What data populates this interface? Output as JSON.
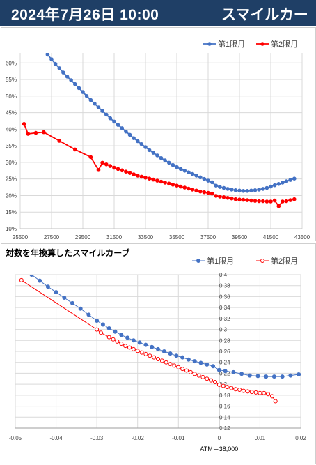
{
  "header": {
    "date_time": "2024年7月26日 10:00",
    "title": "スマイルカーブ",
    "background": "#1f3f66"
  },
  "chart_data": [
    {
      "type": "line",
      "title": "",
      "xlabel": "",
      "ylabel": "",
      "xlim": [
        25500,
        43500
      ],
      "ylim": [
        0.1,
        0.63
      ],
      "x_ticks": [
        25500,
        27500,
        29500,
        31500,
        33500,
        35500,
        37500,
        39500,
        41500,
        43500
      ],
      "x_tick_labels": [
        "25500",
        "27500",
        "29500",
        "31500",
        "33500",
        "35500",
        "37500",
        "39500",
        "41500",
        "43500"
      ],
      "y_ticks": [
        0.1,
        0.15,
        0.2,
        0.25,
        0.3,
        0.35,
        0.4,
        0.45,
        0.5,
        0.55,
        0.6
      ],
      "y_tick_labels": [
        "10%",
        "15%",
        "20%",
        "25%",
        "30%",
        "35%",
        "40%",
        "45%",
        "50%",
        "55%",
        "60%"
      ],
      "grid": true,
      "legend": "top-right",
      "series": [
        {
          "name": "第1限月",
          "color": "#4472c4",
          "points": [
            [
              27000,
              0.64
            ],
            [
              27250,
              0.625
            ],
            [
              27500,
              0.611
            ],
            [
              27750,
              0.597
            ],
            [
              28000,
              0.584
            ],
            [
              28250,
              0.571
            ],
            [
              28500,
              0.559
            ],
            [
              28750,
              0.548
            ],
            [
              29000,
              0.536
            ],
            [
              29250,
              0.524
            ],
            [
              29500,
              0.512
            ],
            [
              29750,
              0.5
            ],
            [
              30000,
              0.488
            ],
            [
              30250,
              0.477
            ],
            [
              30500,
              0.466
            ],
            [
              30750,
              0.455
            ],
            [
              31000,
              0.444
            ],
            [
              31250,
              0.433
            ],
            [
              31500,
              0.423
            ],
            [
              31750,
              0.413
            ],
            [
              32000,
              0.403
            ],
            [
              32250,
              0.393
            ],
            [
              32500,
              0.383
            ],
            [
              32750,
              0.373
            ],
            [
              33000,
              0.364
            ],
            [
              33250,
              0.355
            ],
            [
              33500,
              0.346
            ],
            [
              33750,
              0.337
            ],
            [
              34000,
              0.329
            ],
            [
              34250,
              0.321
            ],
            [
              34500,
              0.313
            ],
            [
              34750,
              0.306
            ],
            [
              35000,
              0.299
            ],
            [
              35250,
              0.292
            ],
            [
              35500,
              0.286
            ],
            [
              35750,
              0.28
            ],
            [
              36000,
              0.275
            ],
            [
              36250,
              0.27
            ],
            [
              36500,
              0.265
            ],
            [
              36750,
              0.26
            ],
            [
              37000,
              0.255
            ],
            [
              37250,
              0.25
            ],
            [
              37500,
              0.245
            ],
            [
              37750,
              0.24
            ],
            [
              38000,
              0.23
            ],
            [
              38250,
              0.226
            ],
            [
              38500,
              0.223
            ],
            [
              38750,
              0.22
            ],
            [
              39000,
              0.218
            ],
            [
              39250,
              0.216
            ],
            [
              39500,
              0.215
            ],
            [
              39750,
              0.214
            ],
            [
              40000,
              0.214
            ],
            [
              40250,
              0.215
            ],
            [
              40500,
              0.216
            ],
            [
              40750,
              0.218
            ],
            [
              41000,
              0.22
            ],
            [
              41250,
              0.223
            ],
            [
              41500,
              0.227
            ],
            [
              41750,
              0.231
            ],
            [
              42000,
              0.235
            ],
            [
              42250,
              0.239
            ],
            [
              42500,
              0.243
            ],
            [
              42750,
              0.247
            ],
            [
              43000,
              0.251
            ]
          ]
        },
        {
          "name": "第2限月",
          "color": "#ff0000",
          "points": [
            [
              25750,
              0.416
            ],
            [
              26000,
              0.386
            ],
            [
              26500,
              0.389
            ],
            [
              27000,
              0.391
            ],
            [
              28000,
              0.365
            ],
            [
              29000,
              0.339
            ],
            [
              30000,
              0.316
            ],
            [
              30500,
              0.277
            ],
            [
              30750,
              0.299
            ],
            [
              31000,
              0.294
            ],
            [
              31250,
              0.289
            ],
            [
              31500,
              0.284
            ],
            [
              31750,
              0.28
            ],
            [
              32000,
              0.276
            ],
            [
              32250,
              0.272
            ],
            [
              32500,
              0.268
            ],
            [
              32750,
              0.264
            ],
            [
              33000,
              0.26
            ],
            [
              33250,
              0.257
            ],
            [
              33500,
              0.254
            ],
            [
              33750,
              0.251
            ],
            [
              34000,
              0.248
            ],
            [
              34250,
              0.245
            ],
            [
              34500,
              0.242
            ],
            [
              34750,
              0.239
            ],
            [
              35000,
              0.236
            ],
            [
              35250,
              0.233
            ],
            [
              35500,
              0.23
            ],
            [
              35750,
              0.227
            ],
            [
              36000,
              0.224
            ],
            [
              36250,
              0.221
            ],
            [
              36500,
              0.218
            ],
            [
              36750,
              0.215
            ],
            [
              37000,
              0.212
            ],
            [
              37250,
              0.21
            ],
            [
              37500,
              0.208
            ],
            [
              37750,
              0.206
            ],
            [
              38000,
              0.199
            ],
            [
              38250,
              0.197
            ],
            [
              38500,
              0.195
            ],
            [
              38750,
              0.193
            ],
            [
              39000,
              0.191
            ],
            [
              39250,
              0.189
            ],
            [
              39500,
              0.188
            ],
            [
              39750,
              0.187
            ],
            [
              40000,
              0.186
            ],
            [
              40250,
              0.185
            ],
            [
              40500,
              0.184
            ],
            [
              40750,
              0.183
            ],
            [
              41000,
              0.183
            ],
            [
              41250,
              0.182
            ],
            [
              41500,
              0.182
            ],
            [
              41750,
              0.185
            ],
            [
              42000,
              0.168
            ],
            [
              42250,
              0.182
            ],
            [
              42500,
              0.183
            ],
            [
              42750,
              0.186
            ],
            [
              43000,
              0.189
            ]
          ]
        }
      ]
    },
    {
      "type": "line",
      "title": "対数を年換算したスマイルカーブ",
      "xlabel": "ATM＝38,000",
      "ylabel": "",
      "xlim": [
        -0.05,
        0.02
      ],
      "ylim": [
        0.12,
        0.4
      ],
      "x_ticks": [
        -0.05,
        -0.04,
        -0.03,
        -0.02,
        -0.01,
        0,
        0.01,
        0.02
      ],
      "x_tick_labels": [
        "-0.05",
        "-0.04",
        "-0.03",
        "-0.02",
        "-0.01",
        "0",
        "0.01",
        "0.02"
      ],
      "y_ticks": [
        0.12,
        0.14,
        0.16,
        0.18,
        0.2,
        0.22,
        0.24,
        0.26,
        0.28,
        0.3,
        0.32,
        0.34,
        0.36,
        0.38,
        0.4
      ],
      "y_tick_labels": [
        "0.12",
        "0.14",
        "0.16",
        "0.18",
        "0.2",
        "0.22",
        "0.24",
        "0.26",
        "0.28",
        "0.3",
        "0.32",
        "0.34",
        "0.36",
        "0.38",
        "0.4"
      ],
      "grid": true,
      "legend": "top-right",
      "series": [
        {
          "name": "第1限月",
          "color": "#4472c4",
          "points": [
            [
              -0.046,
              0.4
            ],
            [
              -0.044,
              0.389
            ],
            [
              -0.042,
              0.378
            ],
            [
              -0.04,
              0.368
            ],
            [
              -0.038,
              0.358
            ],
            [
              -0.036,
              0.348
            ],
            [
              -0.034,
              0.338
            ],
            [
              -0.032,
              0.327
            ],
            [
              -0.03,
              0.316
            ],
            [
              -0.0285,
              0.309
            ],
            [
              -0.027,
              0.302
            ],
            [
              -0.0255,
              0.296
            ],
            [
              -0.024,
              0.29
            ],
            [
              -0.0225,
              0.285
            ],
            [
              -0.021,
              0.28
            ],
            [
              -0.0195,
              0.276
            ],
            [
              -0.018,
              0.272
            ],
            [
              -0.0165,
              0.268
            ],
            [
              -0.015,
              0.264
            ],
            [
              -0.0135,
              0.26
            ],
            [
              -0.012,
              0.256
            ],
            [
              -0.0105,
              0.252
            ],
            [
              -0.009,
              0.249
            ],
            [
              -0.0075,
              0.245
            ],
            [
              -0.006,
              0.242
            ],
            [
              -0.0045,
              0.239
            ],
            [
              -0.003,
              0.236
            ],
            [
              -0.0015,
              0.233
            ],
            [
              0.0,
              0.226
            ],
            [
              0.0015,
              0.224
            ],
            [
              0.0035,
              0.222
            ],
            [
              0.0055,
              0.219
            ],
            [
              0.0075,
              0.216
            ],
            [
              0.0095,
              0.215
            ],
            [
              0.0115,
              0.214
            ],
            [
              0.0135,
              0.214
            ],
            [
              0.0155,
              0.214
            ],
            [
              0.0175,
              0.216
            ],
            [
              0.0195,
              0.218
            ]
          ]
        },
        {
          "name": "第2限月",
          "color": "#ff0000",
          "points": [
            [
              -0.0485,
              0.39
            ],
            [
              -0.03,
              0.3
            ],
            [
              -0.029,
              0.294
            ],
            [
              -0.027,
              0.286
            ],
            [
              -0.026,
              0.282
            ],
            [
              -0.025,
              0.278
            ],
            [
              -0.024,
              0.274
            ],
            [
              -0.023,
              0.27
            ],
            [
              -0.022,
              0.267
            ],
            [
              -0.021,
              0.264
            ],
            [
              -0.02,
              0.261
            ],
            [
              -0.019,
              0.258
            ],
            [
              -0.018,
              0.255
            ],
            [
              -0.017,
              0.252
            ],
            [
              -0.016,
              0.249
            ],
            [
              -0.015,
              0.246
            ],
            [
              -0.014,
              0.243
            ],
            [
              -0.013,
              0.24
            ],
            [
              -0.012,
              0.237
            ],
            [
              -0.011,
              0.234
            ],
            [
              -0.01,
              0.231
            ],
            [
              -0.009,
              0.228
            ],
            [
              -0.008,
              0.225
            ],
            [
              -0.007,
              0.222
            ],
            [
              -0.006,
              0.219
            ],
            [
              -0.005,
              0.216
            ],
            [
              -0.004,
              0.213
            ],
            [
              -0.003,
              0.21
            ],
            [
              -0.002,
              0.207
            ],
            [
              -0.001,
              0.204
            ],
            [
              0.0,
              0.199
            ],
            [
              0.001,
              0.197
            ],
            [
              0.002,
              0.195
            ],
            [
              0.003,
              0.193
            ],
            [
              0.004,
              0.191
            ],
            [
              0.005,
              0.19
            ],
            [
              0.006,
              0.188
            ],
            [
              0.007,
              0.187
            ],
            [
              0.008,
              0.186
            ],
            [
              0.009,
              0.185
            ],
            [
              0.01,
              0.184
            ],
            [
              0.011,
              0.184
            ],
            [
              0.012,
              0.182
            ],
            [
              0.013,
              0.178
            ],
            [
              0.0138,
              0.169
            ]
          ]
        }
      ]
    }
  ]
}
